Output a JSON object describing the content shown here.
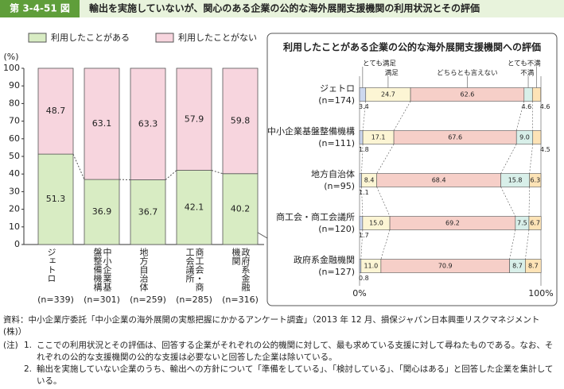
{
  "header": {
    "label": "第 3-4-51 図",
    "title": "輸出を実施していないが、関心のある企業の公的な海外展開支援機関の利用状況とその評価"
  },
  "chart_data": [
    {
      "type": "bar",
      "stacked": true,
      "unit_label": "(%)",
      "categories": [
        "ジェトロ",
        "中小企業基盤整備機構",
        "地方自治体",
        "商工会・商工会議所",
        "政府系金融機関"
      ],
      "n_labels": [
        "(n=339)",
        "(n=301)",
        "(n=259)",
        "(n=285)",
        "(n=316)"
      ],
      "series": [
        {
          "name": "利用したことがある",
          "color": "#d8ecc3",
          "values": [
            51.3,
            36.9,
            36.7,
            42.1,
            40.2
          ]
        },
        {
          "name": "利用したことがない",
          "color": "#f7d5de",
          "values": [
            48.7,
            63.1,
            63.3,
            57.9,
            59.8
          ]
        }
      ],
      "ylim": [
        0,
        100
      ],
      "yticks": [
        0,
        10,
        20,
        30,
        40,
        50,
        60,
        70,
        80,
        90,
        100
      ]
    },
    {
      "type": "hbar",
      "stacked": true,
      "title": "利用したことがある企業の公的な海外展開支援機関への評価",
      "categories": [
        "ジェトロ",
        "中小企業基盤整備機構",
        "地方自治体",
        "商工会・商工会議所",
        "政府系金融機関"
      ],
      "n_labels": [
        "(n=174)",
        "(n=111)",
        "(n=95)",
        "(n=120)",
        "(n=127)"
      ],
      "series": [
        {
          "name": "とても満足",
          "color": "#cdd8ef",
          "values": [
            3.4,
            1.8,
            1.1,
            1.7,
            0.8
          ]
        },
        {
          "name": "満足",
          "color": "#fcf5d4",
          "values": [
            24.7,
            17.1,
            8.4,
            15.0,
            11.0
          ],
          "value_labels": [
            "24.7",
            "17.1",
            "8.4",
            "15.0",
            "11.0"
          ]
        },
        {
          "name": "どちらとも言えない",
          "color": "#f6cfc8",
          "values": [
            62.6,
            67.6,
            68.4,
            69.2,
            70.9
          ]
        },
        {
          "name": "不満",
          "color": "#d8efe9",
          "values": [
            4.6,
            9.0,
            15.8,
            7.5,
            8.7
          ],
          "value_labels": [
            "4.6",
            "9.0",
            "15.8",
            "7.5",
            "8.7"
          ]
        },
        {
          "name": "とても不満",
          "color": "#fde3b6",
          "values": [
            4.6,
            4.5,
            6.3,
            6.7,
            8.7
          ]
        }
      ],
      "xlim": [
        0,
        100
      ],
      "xticks": [
        {
          "value": 0,
          "label": "0%"
        },
        {
          "value": 100,
          "label": "100%"
        }
      ]
    }
  ],
  "notes": {
    "source": "資料：中小企業庁委託「中小企業の海外展開の実態把握にかかるアンケート調査」（2013 年 12 月、損保ジャパン日本興亜リスクマネジメント (株)）",
    "note_label": "(注)",
    "items": [
      {
        "num": "1.",
        "text": "ここでの利用状況とその評価は、回答する企業がそれぞれの公的機関に対して、最も求めている支援に対して尋ねたものである。なお、それぞれの公的な支援機関の公的な支援は必要ないと回答した企業は除いている。"
      },
      {
        "num": "2.",
        "text": "輸出を実施していない企業のうち、輸出への方針について「準備をしている」、「検討している」、「関心はある」と回答した企業を集計している。"
      }
    ]
  }
}
